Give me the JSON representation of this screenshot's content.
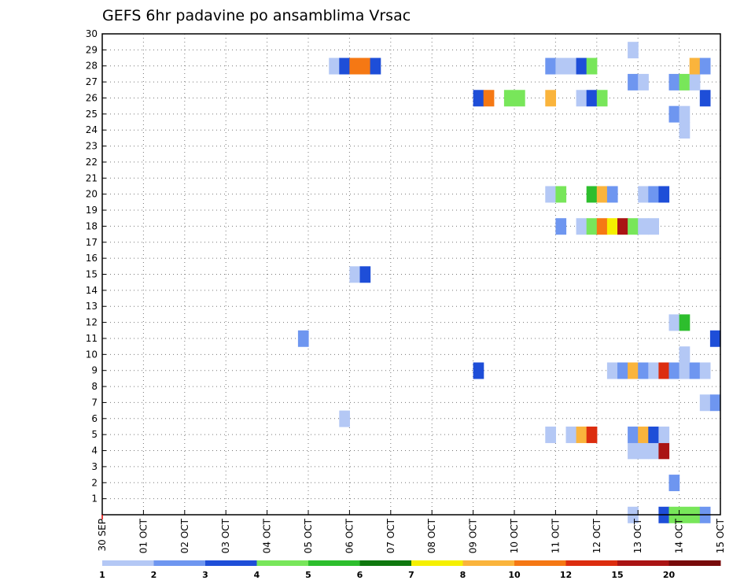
{
  "chart_data": {
    "type": "heatmap",
    "title": "GEFS 6hr padavine po ansamblima Vrsac",
    "y_ticks": [
      "1",
      "2",
      "3",
      "4",
      "5",
      "6",
      "7",
      "8",
      "9",
      "10",
      "11",
      "12",
      "13",
      "14",
      "15",
      "16",
      "17",
      "18",
      "19",
      "20",
      "21",
      "22",
      "23",
      "24",
      "25",
      "26",
      "27",
      "28",
      "29",
      "30"
    ],
    "y_range": [
      0,
      30
    ],
    "x_ticks": [
      "30 SEP",
      "01 OCT",
      "02 OCT",
      "03 OCT",
      "04 OCT",
      "05 OCT",
      "06 OCT",
      "07 OCT",
      "08 OCT",
      "09 OCT",
      "10 OCT",
      "11 OCT",
      "12 OCT",
      "13 OCT",
      "14 OCT",
      "15 OCT"
    ],
    "x_range_steps": [
      0,
      60
    ],
    "x_step_hours": 6,
    "grid": "dotted",
    "colorbar": {
      "labels": [
        "1",
        "2",
        "3",
        "4",
        "5",
        "6",
        "7",
        "8",
        "10",
        "12",
        "15",
        "20"
      ],
      "colors": [
        "#b4c8f5",
        "#6e96f0",
        "#1e4ed8",
        "#78e65a",
        "#2dbe2d",
        "#0f780f",
        "#f5f000",
        "#fab43c",
        "#f57814",
        "#dc2d0f",
        "#aa1414",
        "#780a0a"
      ]
    },
    "cells": [
      {
        "m": 0,
        "t": 52,
        "c": 0
      },
      {
        "m": 0,
        "t": 55,
        "c": 2
      },
      {
        "m": 0,
        "t": 56,
        "c": 3
      },
      {
        "m": 0,
        "t": 57,
        "c": 3
      },
      {
        "m": 0,
        "t": 58,
        "c": 3
      },
      {
        "m": 0,
        "t": 59,
        "c": 1
      },
      {
        "m": 2,
        "t": 56,
        "c": 1
      },
      {
        "m": 4,
        "t": 52,
        "c": 0
      },
      {
        "m": 4,
        "t": 53,
        "c": 0
      },
      {
        "m": 4,
        "t": 54,
        "c": 0
      },
      {
        "m": 4,
        "t": 55,
        "c": 10
      },
      {
        "m": 5,
        "t": 44,
        "c": 0
      },
      {
        "m": 5,
        "t": 46,
        "c": 0
      },
      {
        "m": 5,
        "t": 47,
        "c": 7
      },
      {
        "m": 5,
        "t": 48,
        "c": 9
      },
      {
        "m": 5,
        "t": 52,
        "c": 1
      },
      {
        "m": 5,
        "t": 53,
        "c": 7
      },
      {
        "m": 5,
        "t": 54,
        "c": 2
      },
      {
        "m": 5,
        "t": 55,
        "c": 0
      },
      {
        "m": 6,
        "t": 24,
        "c": 0
      },
      {
        "m": 7,
        "t": 59,
        "c": 0
      },
      {
        "m": 7,
        "t": 60,
        "c": 1
      },
      {
        "m": 9,
        "t": 37,
        "c": 2
      },
      {
        "m": 9,
        "t": 50,
        "c": 0
      },
      {
        "m": 9,
        "t": 51,
        "c": 1
      },
      {
        "m": 9,
        "t": 52,
        "c": 7
      },
      {
        "m": 9,
        "t": 53,
        "c": 1
      },
      {
        "m": 9,
        "t": 54,
        "c": 0
      },
      {
        "m": 9,
        "t": 55,
        "c": 9
      },
      {
        "m": 9,
        "t": 56,
        "c": 1
      },
      {
        "m": 9,
        "t": 57,
        "c": 0
      },
      {
        "m": 9,
        "t": 58,
        "c": 1
      },
      {
        "m": 9,
        "t": 59,
        "c": 0
      },
      {
        "m": 10,
        "t": 57,
        "c": 0
      },
      {
        "m": 11,
        "t": 20,
        "c": 1
      },
      {
        "m": 11,
        "t": 60,
        "c": 2
      },
      {
        "m": 12,
        "t": 56,
        "c": 0
      },
      {
        "m": 12,
        "t": 57,
        "c": 4
      },
      {
        "m": 15,
        "t": 25,
        "c": 0
      },
      {
        "m": 15,
        "t": 26,
        "c": 2
      },
      {
        "m": 18,
        "t": 45,
        "c": 1
      },
      {
        "m": 18,
        "t": 47,
        "c": 0
      },
      {
        "m": 18,
        "t": 48,
        "c": 3
      },
      {
        "m": 18,
        "t": 49,
        "c": 8
      },
      {
        "m": 18,
        "t": 50,
        "c": 6
      },
      {
        "m": 18,
        "t": 51,
        "c": 10
      },
      {
        "m": 18,
        "t": 52,
        "c": 3
      },
      {
        "m": 18,
        "t": 53,
        "c": 0
      },
      {
        "m": 18,
        "t": 54,
        "c": 0
      },
      {
        "m": 20,
        "t": 44,
        "c": 0
      },
      {
        "m": 20,
        "t": 45,
        "c": 3
      },
      {
        "m": 20,
        "t": 48,
        "c": 4
      },
      {
        "m": 20,
        "t": 49,
        "c": 7
      },
      {
        "m": 20,
        "t": 50,
        "c": 1
      },
      {
        "m": 20,
        "t": 53,
        "c": 0
      },
      {
        "m": 20,
        "t": 54,
        "c": 1
      },
      {
        "m": 20,
        "t": 55,
        "c": 2
      },
      {
        "m": 24,
        "t": 57,
        "c": 0
      },
      {
        "m": 25,
        "t": 56,
        "c": 1
      },
      {
        "m": 25,
        "t": 57,
        "c": 0
      },
      {
        "m": 26,
        "t": 37,
        "c": 2
      },
      {
        "m": 26,
        "t": 38,
        "c": 8
      },
      {
        "m": 26,
        "t": 40,
        "c": 3
      },
      {
        "m": 26,
        "t": 41,
        "c": 3
      },
      {
        "m": 26,
        "t": 44,
        "c": 7
      },
      {
        "m": 26,
        "t": 47,
        "c": 0
      },
      {
        "m": 26,
        "t": 48,
        "c": 2
      },
      {
        "m": 26,
        "t": 49,
        "c": 3
      },
      {
        "m": 26,
        "t": 59,
        "c": 2
      },
      {
        "m": 27,
        "t": 52,
        "c": 1
      },
      {
        "m": 27,
        "t": 53,
        "c": 0
      },
      {
        "m": 27,
        "t": 56,
        "c": 1
      },
      {
        "m": 27,
        "t": 57,
        "c": 3
      },
      {
        "m": 27,
        "t": 58,
        "c": 0
      },
      {
        "m": 28,
        "t": 23,
        "c": 0
      },
      {
        "m": 28,
        "t": 24,
        "c": 2
      },
      {
        "m": 28,
        "t": 25,
        "c": 8
      },
      {
        "m": 28,
        "t": 26,
        "c": 8
      },
      {
        "m": 28,
        "t": 27,
        "c": 2
      },
      {
        "m": 28,
        "t": 44,
        "c": 1
      },
      {
        "m": 28,
        "t": 45,
        "c": 0
      },
      {
        "m": 28,
        "t": 46,
        "c": 0
      },
      {
        "m": 28,
        "t": 47,
        "c": 2
      },
      {
        "m": 28,
        "t": 48,
        "c": 3
      },
      {
        "m": 28,
        "t": 58,
        "c": 7
      },
      {
        "m": 28,
        "t": 59,
        "c": 1
      },
      {
        "m": 29,
        "t": 52,
        "c": 0
      }
    ]
  }
}
